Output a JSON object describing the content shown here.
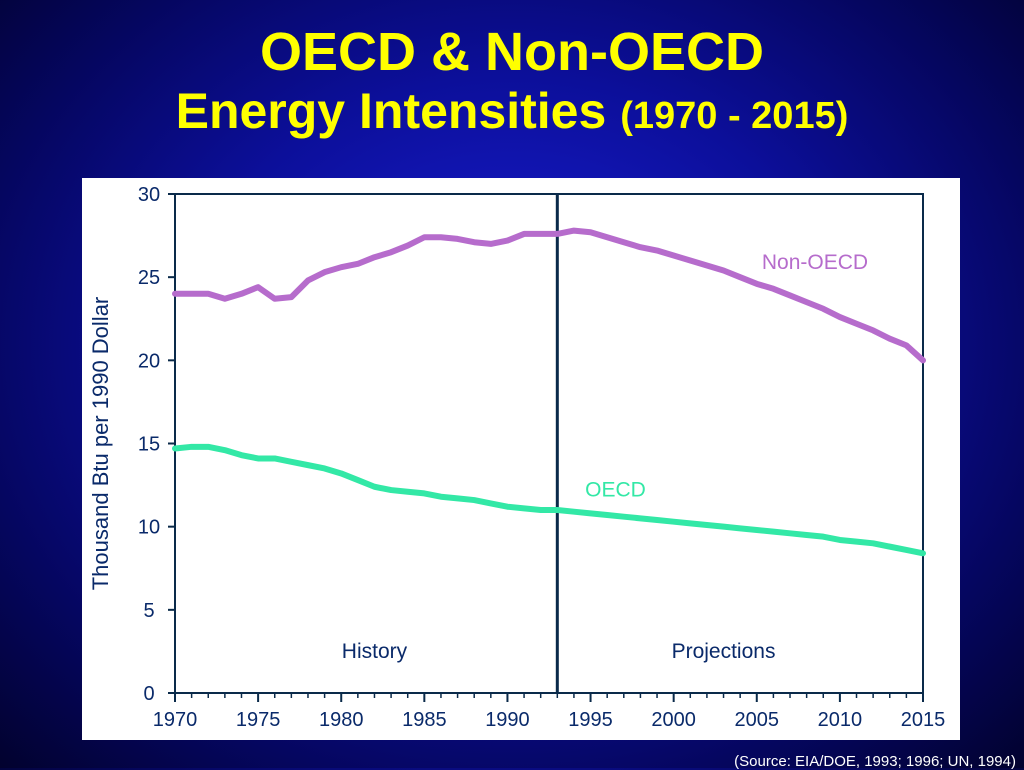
{
  "slide": {
    "title_line1": "OECD & Non-OECD",
    "title_line2": "Energy Intensities",
    "title_range": "(1970 - 2015)",
    "source": "(Source: EIA/DOE, 1993; 1996; UN, 1994)"
  },
  "chart_data": {
    "type": "line",
    "title": "",
    "xlabel": "",
    "ylabel": "Thousand Btu per 1990 Dollar",
    "xlim": [
      1970,
      2015
    ],
    "ylim": [
      0,
      30
    ],
    "x_ticks": [
      1970,
      1975,
      1980,
      1985,
      1990,
      1995,
      2000,
      2005,
      2010,
      2015
    ],
    "x_tick_labels": [
      "1970",
      "1975",
      "1980",
      "1985",
      "1990",
      "1995",
      "2000",
      "2005",
      "2010",
      "2015"
    ],
    "y_ticks": [
      0,
      5,
      10,
      15,
      20,
      25,
      30
    ],
    "y_tick_labels": [
      "0",
      "5",
      "10",
      "15",
      "20",
      "25",
      "30"
    ],
    "divider_x": 1993,
    "region_labels": [
      {
        "text": "History",
        "x": 1982,
        "y": 2.1
      },
      {
        "text": "Projections",
        "x": 2003,
        "y": 2.1
      }
    ],
    "grid": false,
    "series": [
      {
        "name": "Non-OECD",
        "color": "#b66ccc",
        "label_at": {
          "x": 2008.5,
          "y": 25.5
        },
        "x": [
          1970,
          1971,
          1972,
          1973,
          1974,
          1975,
          1976,
          1977,
          1978,
          1979,
          1980,
          1981,
          1982,
          1983,
          1984,
          1985,
          1986,
          1987,
          1988,
          1989,
          1990,
          1991,
          1992,
          1993,
          1994,
          1995,
          1996,
          1997,
          1998,
          1999,
          2000,
          2001,
          2002,
          2003,
          2004,
          2005,
          2006,
          2007,
          2008,
          2009,
          2010,
          2011,
          2012,
          2013,
          2014,
          2015
        ],
        "values": [
          24.0,
          24.0,
          24.0,
          23.7,
          24.0,
          24.4,
          23.7,
          23.8,
          24.8,
          25.3,
          25.6,
          25.8,
          26.2,
          26.5,
          26.9,
          27.4,
          27.4,
          27.3,
          27.1,
          27.0,
          27.2,
          27.6,
          27.6,
          27.6,
          27.8,
          27.7,
          27.4,
          27.1,
          26.8,
          26.6,
          26.3,
          26.0,
          25.7,
          25.4,
          25.0,
          24.6,
          24.3,
          23.9,
          23.5,
          23.1,
          22.6,
          22.2,
          21.8,
          21.3,
          20.9,
          20.0
        ]
      },
      {
        "name": "OECD",
        "color": "#33e8a6",
        "label_at": {
          "x": 1996.5,
          "y": 11.8
        },
        "x": [
          1970,
          1971,
          1972,
          1973,
          1974,
          1975,
          1976,
          1977,
          1978,
          1979,
          1980,
          1981,
          1982,
          1983,
          1984,
          1985,
          1986,
          1987,
          1988,
          1989,
          1990,
          1991,
          1992,
          1993,
          1994,
          1995,
          1996,
          1997,
          1998,
          1999,
          2000,
          2001,
          2002,
          2003,
          2004,
          2005,
          2006,
          2007,
          2008,
          2009,
          2010,
          2011,
          2012,
          2013,
          2014,
          2015
        ],
        "values": [
          14.7,
          14.8,
          14.8,
          14.6,
          14.3,
          14.1,
          14.1,
          13.9,
          13.7,
          13.5,
          13.2,
          12.8,
          12.4,
          12.2,
          12.1,
          12.0,
          11.8,
          11.7,
          11.6,
          11.4,
          11.2,
          11.1,
          11.0,
          11.0,
          10.9,
          10.8,
          10.7,
          10.6,
          10.5,
          10.4,
          10.3,
          10.2,
          10.1,
          10.0,
          9.9,
          9.8,
          9.7,
          9.6,
          9.5,
          9.4,
          9.2,
          9.1,
          9.0,
          8.8,
          8.6,
          8.4
        ]
      }
    ]
  }
}
